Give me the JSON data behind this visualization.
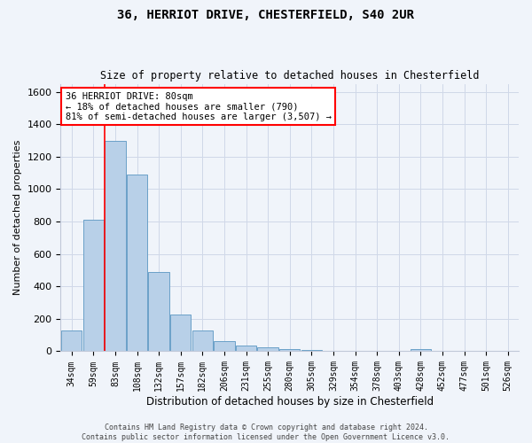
{
  "title1": "36, HERRIOT DRIVE, CHESTERFIELD, S40 2UR",
  "title2": "Size of property relative to detached houses in Chesterfield",
  "xlabel": "Distribution of detached houses by size in Chesterfield",
  "ylabel": "Number of detached properties",
  "bar_color": "#b8d0e8",
  "bar_edge_color": "#6aa0c8",
  "grid_color": "#d0d8e8",
  "background_color": "#f0f4fa",
  "categories": [
    "34sqm",
    "59sqm",
    "83sqm",
    "108sqm",
    "132sqm",
    "157sqm",
    "182sqm",
    "206sqm",
    "231sqm",
    "255sqm",
    "280sqm",
    "305sqm",
    "329sqm",
    "354sqm",
    "378sqm",
    "403sqm",
    "428sqm",
    "452sqm",
    "477sqm",
    "501sqm",
    "526sqm"
  ],
  "values": [
    130,
    810,
    1300,
    1090,
    490,
    225,
    130,
    65,
    35,
    22,
    12,
    6,
    0,
    0,
    0,
    0,
    12,
    0,
    0,
    0,
    0
  ],
  "ylim": [
    0,
    1650
  ],
  "yticks": [
    0,
    200,
    400,
    600,
    800,
    1000,
    1200,
    1400,
    1600
  ],
  "red_line_bin_index": 2,
  "annotation_line1": "36 HERRIOT DRIVE: 80sqm",
  "annotation_line2": "← 18% of detached houses are smaller (790)",
  "annotation_line3": "81% of semi-detached houses are larger (3,507) →",
  "annotation_box_color": "white",
  "annotation_edge_color": "red",
  "footer1": "Contains HM Land Registry data © Crown copyright and database right 2024.",
  "footer2": "Contains public sector information licensed under the Open Government Licence v3.0."
}
